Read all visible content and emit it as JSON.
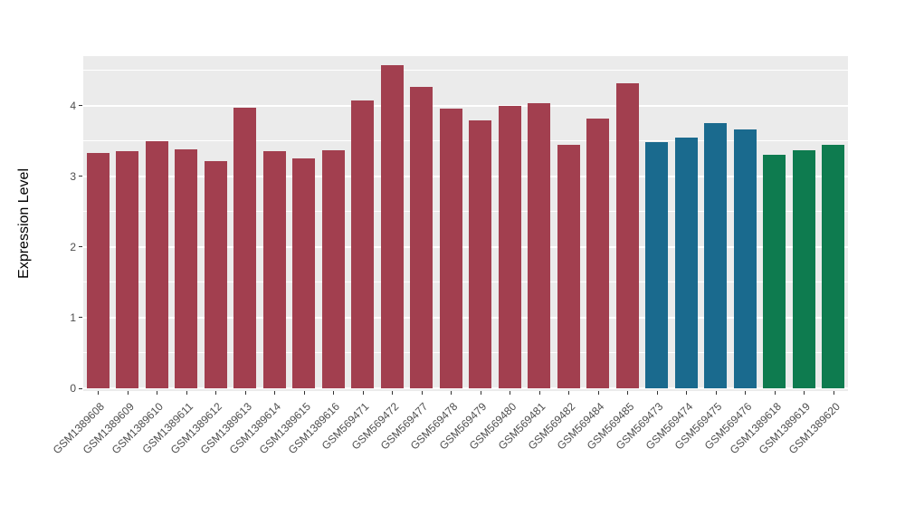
{
  "chart_data": {
    "type": "bar",
    "title": "",
    "xlabel": "",
    "ylabel": "Expression Level",
    "ylim": [
      0,
      4.7
    ],
    "yticks": [
      0,
      1,
      2,
      3,
      4
    ],
    "yticks_minor": [
      0.5,
      1.5,
      2.5,
      3.5,
      4.5
    ],
    "grid": true,
    "legend": "none",
    "panel_background": "#EBEBEB",
    "gridline_color": "#FFFFFF",
    "tick_label_color": "#4D4D4D",
    "categories": [
      "GSM1389608",
      "GSM1389609",
      "GSM1389610",
      "GSM1389611",
      "GSM1389612",
      "GSM1389613",
      "GSM1389614",
      "GSM1389615",
      "GSM1389616",
      "GSM569471",
      "GSM569472",
      "GSM569477",
      "GSM569478",
      "GSM569479",
      "GSM569480",
      "GSM569481",
      "GSM569482",
      "GSM569484",
      "GSM569485",
      "GSM569473",
      "GSM569474",
      "GSM569475",
      "GSM569476",
      "GSM1389618",
      "GSM1389619",
      "GSM1389620"
    ],
    "values": [
      3.33,
      3.35,
      3.5,
      3.38,
      3.21,
      3.97,
      3.35,
      3.25,
      3.37,
      4.07,
      4.57,
      4.27,
      3.96,
      3.79,
      3.99,
      4.04,
      3.44,
      3.82,
      4.31,
      3.48,
      3.55,
      3.75,
      3.66,
      3.3,
      3.37,
      3.44
    ],
    "groups": [
      "red",
      "red",
      "red",
      "red",
      "red",
      "red",
      "red",
      "red",
      "red",
      "red",
      "red",
      "red",
      "red",
      "red",
      "red",
      "red",
      "red",
      "red",
      "red",
      "blue",
      "blue",
      "blue",
      "blue",
      "green",
      "green",
      "green"
    ],
    "group_colors": {
      "red": "#A23F4F",
      "blue": "#1A6A8E",
      "green": "#0E7B4F"
    }
  }
}
